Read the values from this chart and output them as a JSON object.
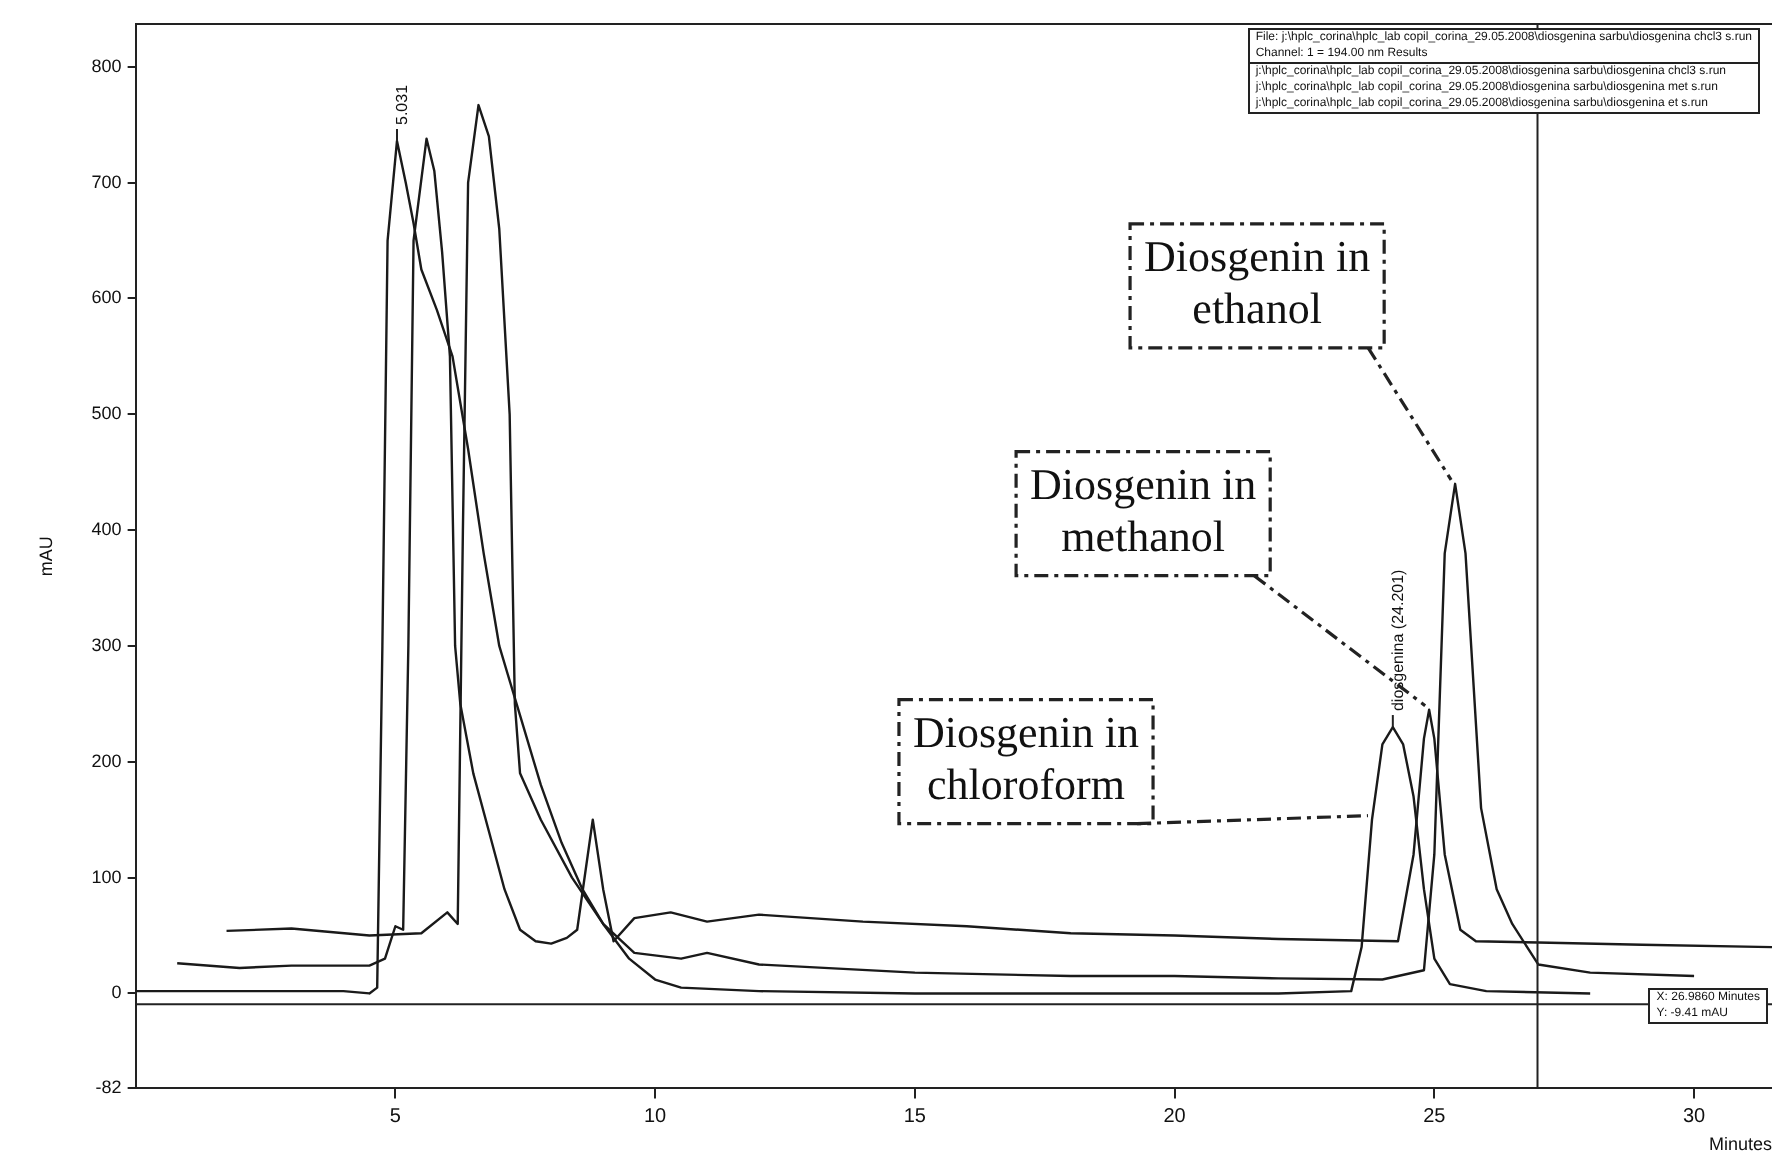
{
  "chart_data": {
    "type": "line",
    "xlabel": "Minutes",
    "ylabel": "mAU",
    "xlim": [
      0,
      31.5
    ],
    "xticks": [
      5,
      10,
      15,
      20,
      25,
      30
    ],
    "ylim": [
      -82,
      837
    ],
    "yticks": [
      -82,
      0,
      100,
      200,
      300,
      400,
      500,
      600,
      700,
      800
    ],
    "grid": false,
    "legend": false,
    "marker": "none",
    "line_style": "solid",
    "series": [
      {
        "color": "#1a1a1a",
        "x": [
          0,
          2,
          4,
          4.5,
          4.65,
          4.75,
          4.85,
          5.031,
          5.2,
          5.35,
          5.5,
          5.8,
          6.1,
          6.4,
          6.7,
          7.0,
          7.4,
          7.8,
          8.2,
          8.6,
          9.0,
          9.5,
          10.0,
          10.5,
          12,
          15,
          18,
          20,
          22,
          23.4,
          23.6,
          23.8,
          24.0,
          24.201,
          24.4,
          24.6,
          24.8,
          25.0,
          25.3,
          26,
          28
        ],
        "values": [
          2,
          2,
          2,
          0,
          5,
          300,
          650,
          736,
          700,
          665,
          625,
          590,
          550,
          470,
          380,
          300,
          240,
          180,
          130,
          90,
          60,
          30,
          12,
          5,
          2,
          0,
          0,
          0,
          0,
          2,
          40,
          150,
          215,
          230,
          215,
          170,
          90,
          30,
          8,
          2,
          0
        ]
      },
      {
        "color": "#1a1a1a",
        "x": [
          0.8,
          2,
          3,
          4.5,
          4.8,
          5.0,
          5.15,
          5.25,
          5.35,
          5.6,
          5.75,
          5.9,
          6.05,
          6.15,
          6.25,
          6.5,
          6.8,
          7.1,
          7.4,
          7.7,
          8.0,
          8.3,
          8.5,
          8.8,
          9.0,
          9.2,
          9.6,
          10.3,
          11,
          12,
          14,
          16,
          18,
          20,
          22,
          24.3,
          24.6,
          24.8,
          24.9,
          25.0,
          25.2,
          25.5,
          25.8,
          27,
          29,
          31.5
        ],
        "values": [
          26,
          22,
          24,
          24,
          30,
          58,
          55,
          300,
          650,
          738,
          710,
          640,
          550,
          300,
          250,
          190,
          140,
          90,
          55,
          45,
          43,
          48,
          55,
          150,
          90,
          45,
          65,
          70,
          62,
          68,
          62,
          58,
          52,
          50,
          47,
          45,
          120,
          220,
          245,
          220,
          120,
          55,
          45,
          44,
          42,
          40
        ]
      },
      {
        "color": "#1a1a1a",
        "x": [
          1.75,
          3,
          4.5,
          5.5,
          6.0,
          6.2,
          6.3,
          6.4,
          6.6,
          6.8,
          7.0,
          7.2,
          7.3,
          7.4,
          7.8,
          8.4,
          9.0,
          9.6,
          10.5,
          11,
          12,
          15,
          18,
          20,
          22,
          24,
          24.8,
          25.0,
          25.2,
          25.4,
          25.6,
          25.9,
          26.2,
          26.5,
          27,
          28,
          30
        ],
        "values": [
          54,
          56,
          50,
          52,
          70,
          60,
          400,
          700,
          767,
          740,
          660,
          500,
          250,
          190,
          150,
          100,
          60,
          35,
          30,
          35,
          25,
          18,
          15,
          15,
          13,
          12,
          20,
          120,
          380,
          440,
          380,
          160,
          90,
          60,
          25,
          18,
          15
        ]
      }
    ],
    "ref_lines": [
      {
        "axis": "x",
        "value": 26.986
      },
      {
        "axis": "y",
        "value": -9.41
      }
    ],
    "annotations": [
      {
        "text": "5.031",
        "x": 5.031,
        "y": 736
      },
      {
        "text": "diosgenina (24.201)",
        "x": 24.201,
        "y": 230
      },
      {
        "text": "Diosgenin in ethanol",
        "x": 25.4,
        "y": 440
      },
      {
        "text": "Diosgenin in methanol",
        "x": 24.9,
        "y": 245
      },
      {
        "text": "Diosgenin in chloroform",
        "x": 23.8,
        "y": 150
      },
      "File: j:\\hplc_corina\\hplc_lab copil_corina_29.05.2008\\diosgenina sarbu\\diosgenina chcl3 s.run",
      "Channel: 1 = 194.00 nm Results",
      "j:\\hplc_corina\\hplc_lab copil_corina_29.05.2008\\diosgenina sarbu\\diosgenina chcl3 s.run",
      "j:\\hplc_corina\\hplc_lab copil_corina_29.05.2008\\diosgenina sarbu\\diosgenina met s.run",
      "j:\\hplc_corina\\hplc_lab copil_corina_29.05.2008\\diosgenina sarbu\\diosgenina et s.run",
      "X: 26.9860 Minutes",
      "Y: -9.41 mAU"
    ]
  }
}
